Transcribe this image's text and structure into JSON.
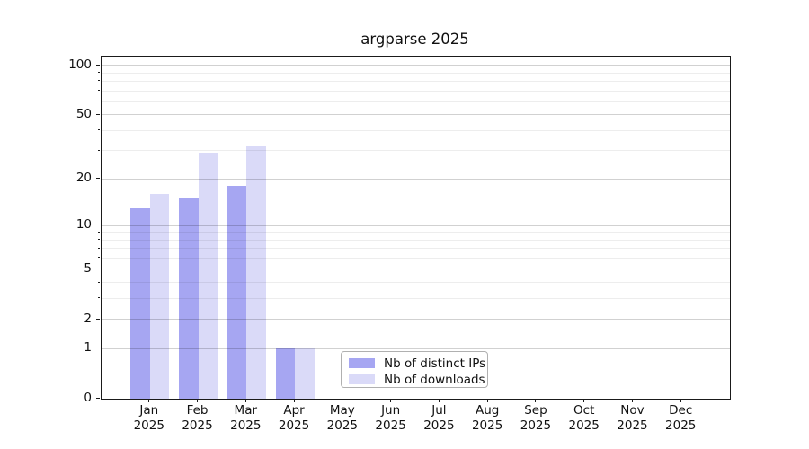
{
  "chart_data": {
    "type": "bar",
    "title": "argparse 2025",
    "categories": [
      "Jan 2025",
      "Feb 2025",
      "Mar 2025",
      "Apr 2025",
      "May 2025",
      "Jun 2025",
      "Jul 2025",
      "Aug 2025",
      "Sep 2025",
      "Oct 2025",
      "Nov 2025",
      "Dec 2025"
    ],
    "series": [
      {
        "name": "Nb of distinct IPs",
        "color": "#a6a6f2",
        "values": [
          13,
          15,
          18,
          1,
          0,
          0,
          0,
          0,
          0,
          0,
          0,
          0
        ]
      },
      {
        "name": "Nb of downloads",
        "color": "#dadaf8",
        "values": [
          16,
          29,
          32,
          1,
          0,
          0,
          0,
          0,
          0,
          0,
          0,
          0
        ]
      }
    ],
    "yscale": "log1p",
    "ylim": [
      0,
      113
    ],
    "yticks": [
      0,
      1,
      2,
      5,
      10,
      20,
      50,
      100
    ],
    "yticks_minor": [
      3,
      4,
      6,
      7,
      8,
      9,
      30,
      40,
      60,
      70,
      80,
      90
    ],
    "grid": "horizontal-major-and-minor",
    "legend_position": "lower-center-inside",
    "xlabel": "",
    "ylabel": ""
  }
}
